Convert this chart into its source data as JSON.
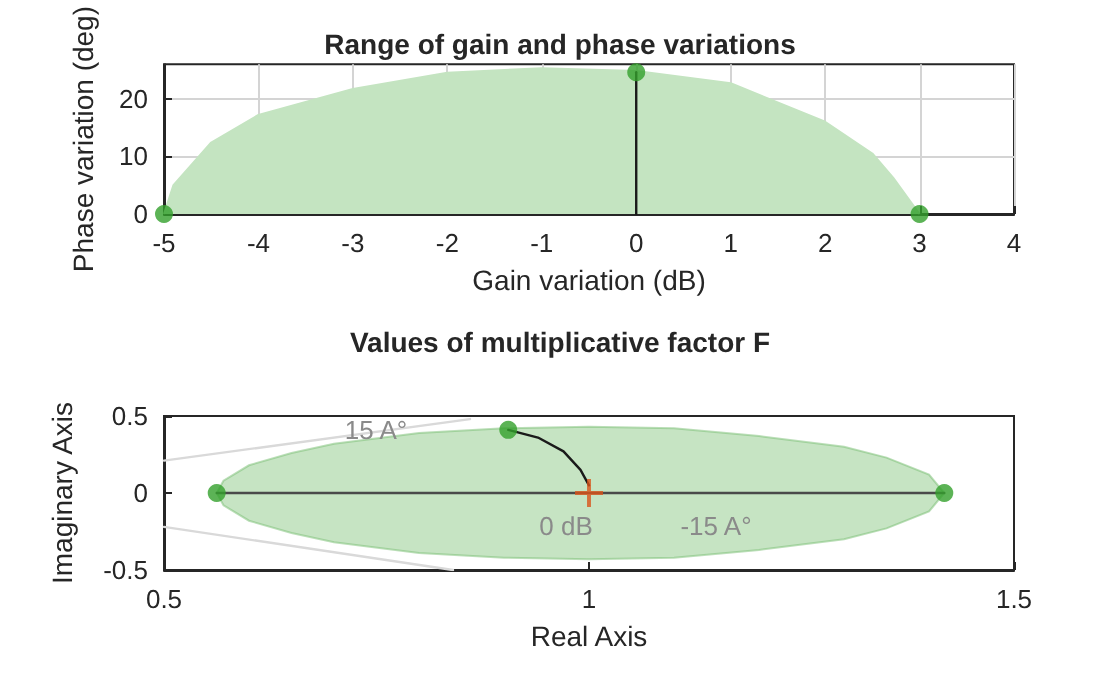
{
  "chart_data": [
    {
      "type": "area",
      "title": "Range of gain and phase variations",
      "xlabel": "Gain variation (dB)",
      "ylabel": "Phase variation (deg)",
      "xlim": [
        -5,
        4
      ],
      "xticks": [
        -5,
        -4,
        -3,
        -2,
        -1,
        0,
        1,
        2,
        3,
        4
      ],
      "ylim": [
        0,
        26
      ],
      "yticks": [
        0,
        10,
        20
      ],
      "grid": true,
      "series": [
        {
          "color": "#c4e4c1",
          "marker": "none",
          "x": [
            -5,
            -4.9,
            -4.5,
            -4,
            -3,
            -2,
            -1,
            0,
            1,
            2,
            2.5,
            2.72,
            3
          ],
          "values": [
            0,
            5,
            12.4,
            17.2,
            21.7,
            24.5,
            25.3,
            24.8,
            22.7,
            16,
            10.5,
            6.3,
            0
          ]
        },
        {
          "type": "line",
          "color": "#1a1a1a",
          "marker": "none",
          "x": [
            0,
            0
          ],
          "values": [
            0,
            24.6
          ]
        },
        {
          "type": "scatter",
          "color": "#33a02c",
          "marker": "circle",
          "x": [
            -5,
            0,
            3
          ],
          "values": [
            0,
            24.6,
            0
          ]
        }
      ]
    },
    {
      "type": "line",
      "title": "Values of multiplicative factor F",
      "xlabel": "Real Axis",
      "ylabel": "Imaginary Axis",
      "xlim": [
        0.5,
        1.5
      ],
      "xticks": [
        0.5,
        1,
        1.5
      ],
      "ylim": [
        -0.5,
        0.5
      ],
      "yticks": [
        -0.5,
        0,
        0.5
      ],
      "grid": false,
      "annotations": [
        "15 A°",
        "0 dB",
        "-15 A°"
      ],
      "series": [
        {
          "color": "#d9d9d9",
          "marker": "none",
          "x": [
            0.5,
            0.86
          ],
          "values": [
            0.21,
            0.48
          ]
        },
        {
          "color": "#d9d9d9",
          "marker": "none",
          "x": [
            0.5,
            0.84
          ],
          "values": [
            -0.22,
            -0.5
          ]
        },
        {
          "color": "#4a4a4a",
          "marker": "none",
          "x": [
            0.562,
            0.57,
            0.6,
            0.65,
            0.7,
            0.8,
            0.9,
            1.0,
            1.1,
            1.2,
            1.3,
            1.35,
            1.4,
            1.418
          ],
          "values": [
            0,
            0,
            0,
            0,
            0,
            0,
            0,
            0,
            0,
            0,
            0,
            0,
            0,
            0
          ],
          "upper": [
            0,
            0.08,
            0.18,
            0.26,
            0.32,
            0.39,
            0.42,
            0.43,
            0.42,
            0.37,
            0.3,
            0.23,
            0.12,
            0
          ],
          "lower": [
            0,
            -0.08,
            -0.18,
            -0.26,
            -0.32,
            -0.39,
            -0.42,
            -0.43,
            -0.42,
            -0.37,
            -0.3,
            -0.23,
            -0.12,
            0
          ]
        },
        {
          "color": "#1a1a1a",
          "marker": "none",
          "x": [
            0.905,
            0.94,
            0.97,
            0.99,
            1.0
          ],
          "values": [
            0.41,
            0.36,
            0.27,
            0.15,
            0.05
          ]
        },
        {
          "type": "scatter",
          "color": "#33a02c",
          "marker": "circle",
          "x": [
            0.562,
            0.905,
            1.418
          ],
          "values": [
            0,
            0.41,
            0
          ]
        },
        {
          "type": "scatter",
          "color": "#d95319",
          "marker": "cross",
          "x": [
            1
          ],
          "values": [
            0
          ]
        }
      ]
    }
  ]
}
